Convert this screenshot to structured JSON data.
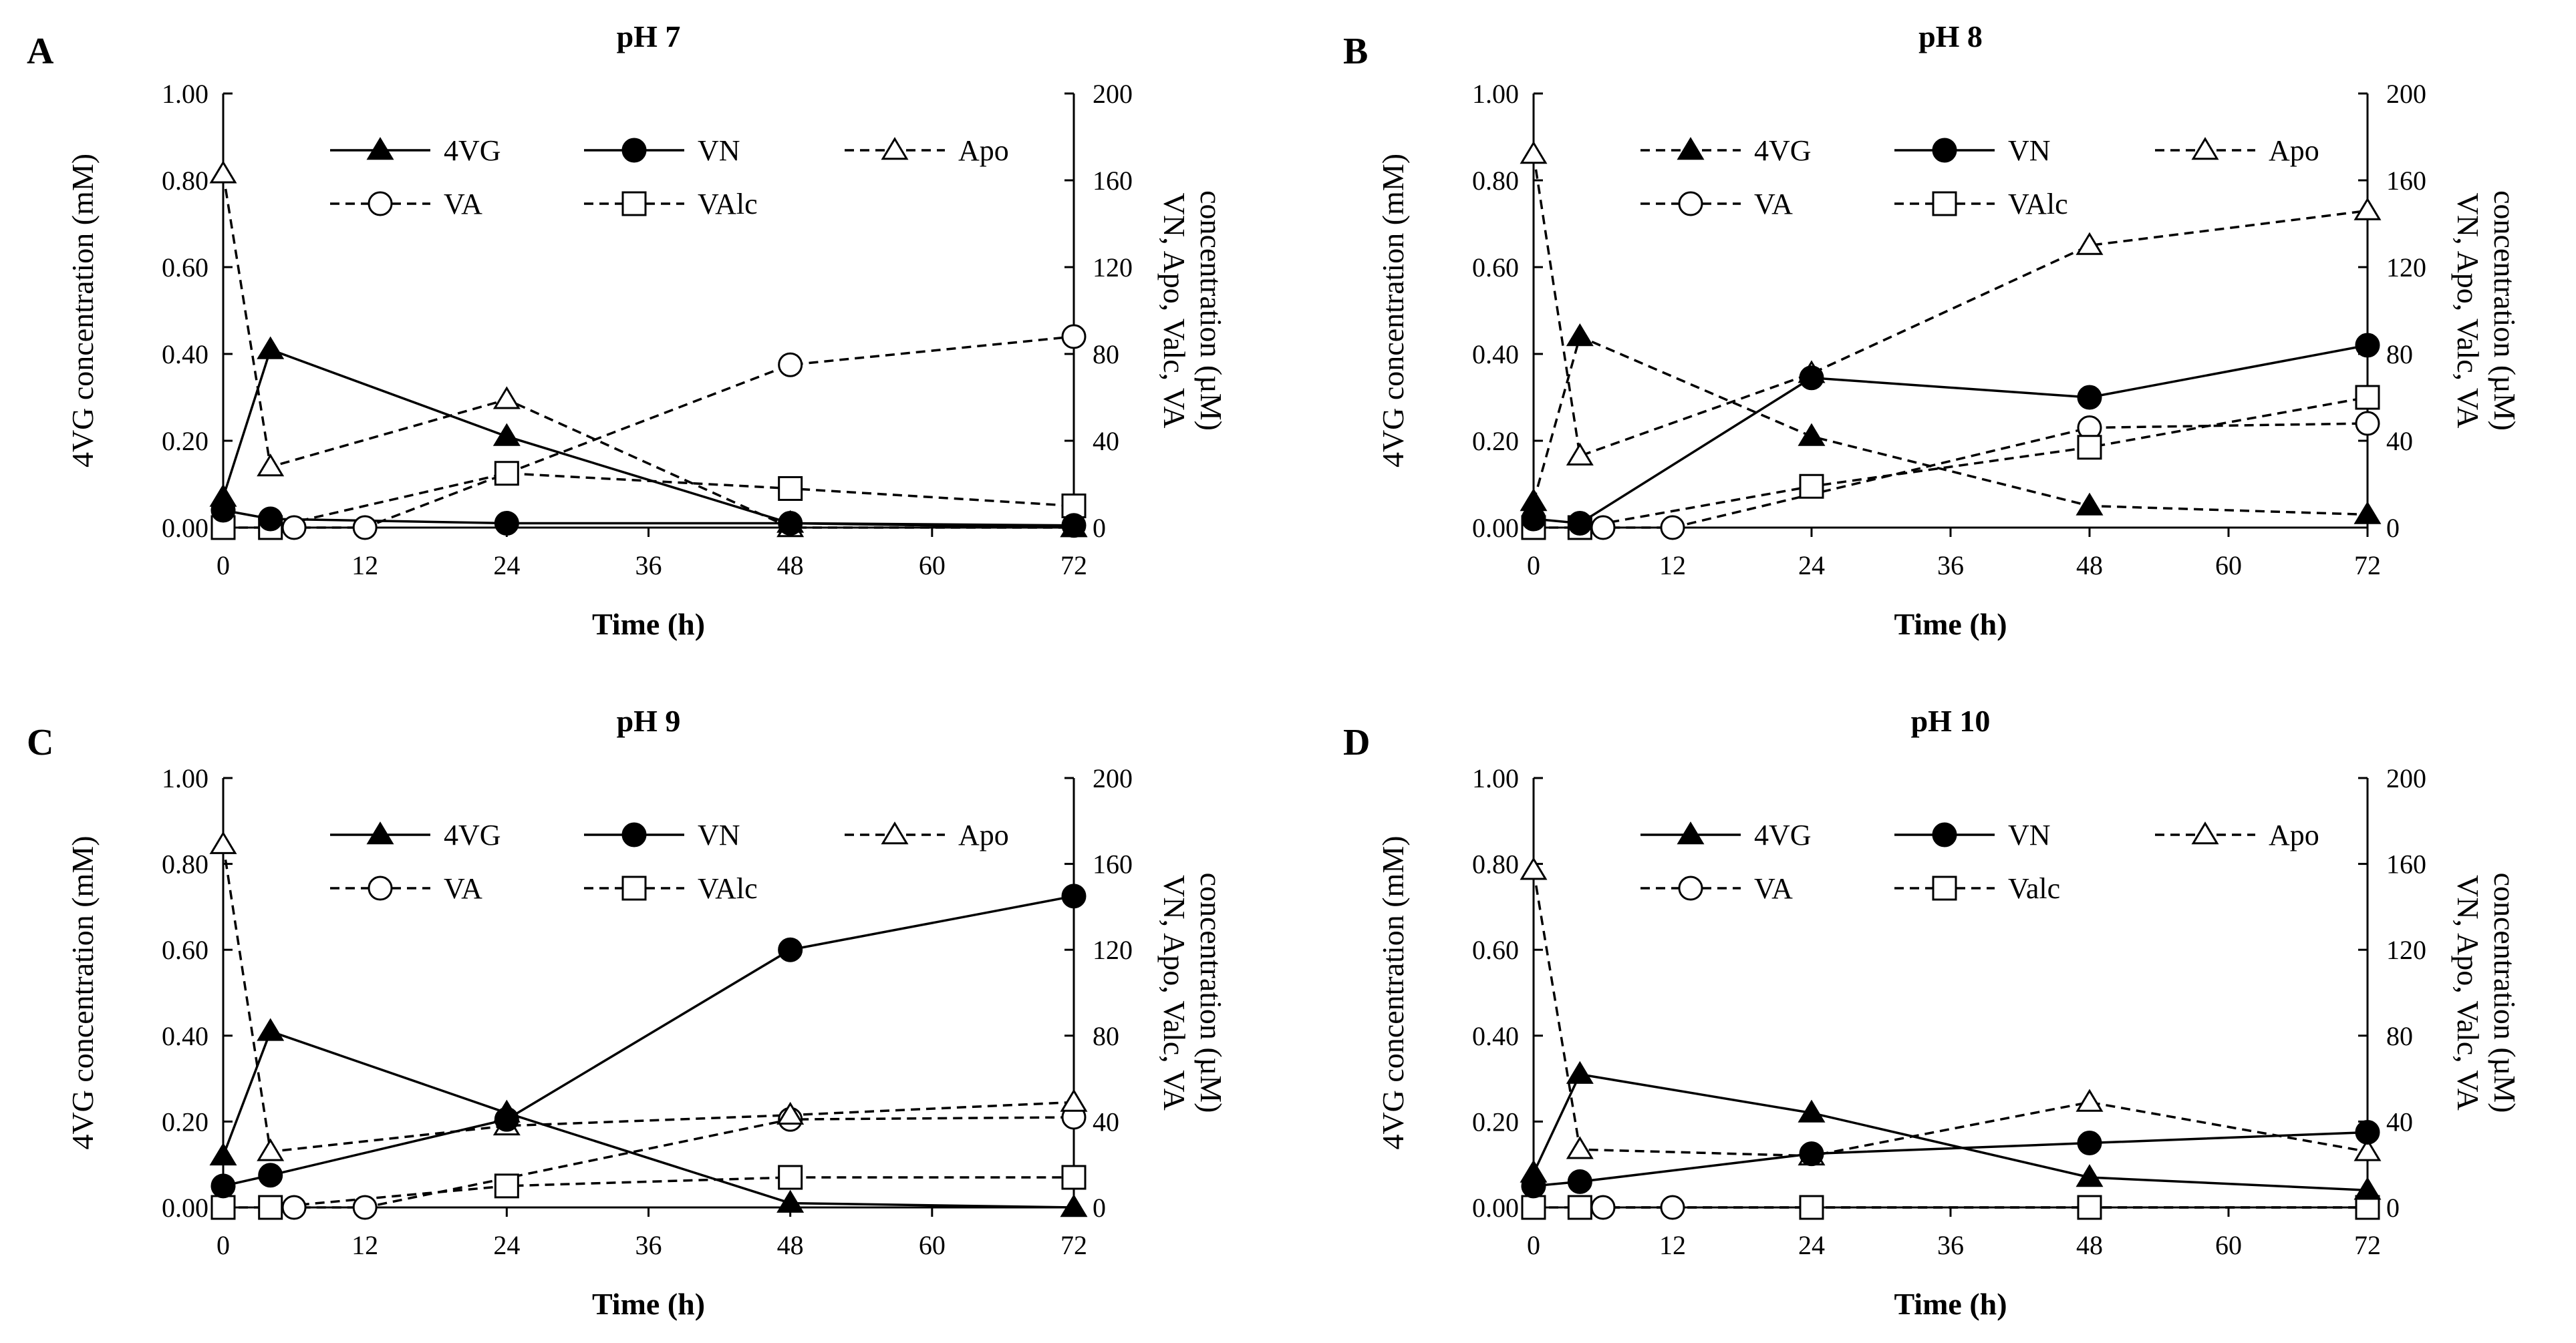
{
  "figure": {
    "x_axis_label": "Time (h)",
    "left_axis_label": "4VG concentration (mM)",
    "right_axis_label_line1": "VN, Apo, Valc, VA",
    "right_axis_label_line2": "concentration (µM)"
  },
  "chart_data": [
    {
      "type": "line",
      "panel": "A",
      "title": "pH 7",
      "xlabel": "Time (h)",
      "ylabel": "4VG concentration (mM)",
      "y2label": "VN, Apo, Valc, VA concentration (µM)",
      "xlim": [
        0,
        72
      ],
      "ylim": [
        0,
        1.0
      ],
      "y2lim": [
        0,
        200
      ],
      "x_ticks": [
        "0",
        "12",
        "24",
        "36",
        "48",
        "60",
        "72"
      ],
      "y_ticks": [
        "0.00",
        "0.20",
        "0.40",
        "0.60",
        "0.80",
        "1.00"
      ],
      "y2_ticks": [
        "0",
        "40",
        "80",
        "120",
        "160",
        "200"
      ],
      "legend_position": "top",
      "series": [
        {
          "name": "4VG",
          "axis": "left",
          "marker": "filled-triangle",
          "line": "solid",
          "x": [
            0,
            4,
            24,
            48,
            72
          ],
          "values": [
            0.07,
            0.41,
            0.21,
            0.01,
            0.0
          ]
        },
        {
          "name": "VN",
          "axis": "right",
          "marker": "filled-circle",
          "line": "solid",
          "x": [
            0,
            4,
            24,
            48,
            72
          ],
          "values": [
            8,
            4,
            2,
            2,
            1
          ]
        },
        {
          "name": "Apo",
          "axis": "right",
          "marker": "open-triangle",
          "line": "dashed",
          "x": [
            0,
            4,
            24,
            48,
            72
          ],
          "values": [
            163,
            28,
            59,
            0,
            0
          ]
        },
        {
          "name": "VA",
          "axis": "right",
          "marker": "open-circle",
          "line": "dashed",
          "x": [
            4,
            6,
            12,
            48,
            72
          ],
          "values": [
            0,
            0,
            0,
            75,
            88
          ]
        },
        {
          "name": "VAlc",
          "axis": "right",
          "marker": "open-square",
          "line": "dashed",
          "x": [
            0,
            4,
            24,
            48,
            72
          ],
          "values": [
            0,
            0,
            25,
            18,
            10
          ]
        }
      ]
    },
    {
      "type": "line",
      "panel": "B",
      "title": "pH 8",
      "xlabel": "Time (h)",
      "ylabel": "4VG concentration (mM)",
      "y2label": "VN, Apo, Valc, VA concentration (µM)",
      "xlim": [
        0,
        72
      ],
      "ylim": [
        0,
        1.0
      ],
      "y2lim": [
        0,
        200
      ],
      "x_ticks": [
        "0",
        "12",
        "24",
        "36",
        "48",
        "60",
        "72"
      ],
      "y_ticks": [
        "0.00",
        "0.20",
        "0.40",
        "0.60",
        "0.80",
        "1.00"
      ],
      "y2_ticks": [
        "0",
        "40",
        "80",
        "120",
        "160",
        "200"
      ],
      "legend_position": "top",
      "series": [
        {
          "name": "4VG",
          "axis": "left",
          "marker": "filled-triangle",
          "line": "dashed",
          "x": [
            0,
            4,
            24,
            48,
            72
          ],
          "values": [
            0.06,
            0.44,
            0.21,
            0.05,
            0.03
          ]
        },
        {
          "name": "VN",
          "axis": "right",
          "marker": "filled-circle",
          "line": "solid",
          "x": [
            0,
            4,
            24,
            48,
            72
          ],
          "values": [
            4,
            2,
            69,
            60,
            84
          ]
        },
        {
          "name": "Apo",
          "axis": "right",
          "marker": "open-triangle",
          "line": "dashed",
          "x": [
            0,
            4,
            24,
            48,
            72
          ],
          "values": [
            172,
            33,
            71,
            130,
            146
          ]
        },
        {
          "name": "VA",
          "axis": "right",
          "marker": "open-circle",
          "line": "dashed",
          "x": [
            4,
            6,
            12,
            48,
            72
          ],
          "values": [
            0,
            0,
            0,
            46,
            48
          ]
        },
        {
          "name": "VAlc",
          "axis": "right",
          "marker": "open-square",
          "line": "dashed",
          "x": [
            0,
            4,
            24,
            48,
            72
          ],
          "values": [
            0,
            0,
            19,
            37,
            60
          ]
        }
      ]
    },
    {
      "type": "line",
      "panel": "C",
      "title": "pH 9",
      "xlabel": "Time (h)",
      "ylabel": "4VG concentration (mM)",
      "y2label": "VN, Apo, Valc, VA concentration (µM)",
      "xlim": [
        0,
        72
      ],
      "ylim": [
        0,
        1.0
      ],
      "y2lim": [
        0,
        200
      ],
      "x_ticks": [
        "0",
        "12",
        "24",
        "36",
        "48",
        "60",
        "72"
      ],
      "y_ticks": [
        "0.00",
        "0.20",
        "0.40",
        "0.60",
        "0.80",
        "1.00"
      ],
      "y2_ticks": [
        "0",
        "40",
        "80",
        "120",
        "160",
        "200"
      ],
      "legend_position": "top",
      "series": [
        {
          "name": "4VG",
          "axis": "left",
          "marker": "filled-triangle",
          "line": "solid",
          "x": [
            0,
            4,
            24,
            48,
            72
          ],
          "values": [
            0.12,
            0.41,
            0.22,
            0.01,
            0.0
          ]
        },
        {
          "name": "VN",
          "axis": "right",
          "marker": "filled-circle",
          "line": "solid",
          "x": [
            0,
            4,
            24,
            48,
            72
          ],
          "values": [
            10,
            15,
            41,
            120,
            145
          ]
        },
        {
          "name": "Apo",
          "axis": "right",
          "marker": "open-triangle",
          "line": "dashed",
          "x": [
            0,
            4,
            24,
            48,
            72
          ],
          "values": [
            169,
            26,
            38,
            43,
            49
          ]
        },
        {
          "name": "VA",
          "axis": "right",
          "marker": "open-circle",
          "line": "dashed",
          "x": [
            4,
            6,
            12,
            48,
            72
          ],
          "values": [
            0,
            0,
            0,
            41,
            42
          ]
        },
        {
          "name": "VAlc",
          "axis": "right",
          "marker": "open-square",
          "line": "dashed",
          "x": [
            0,
            4,
            24,
            48,
            72
          ],
          "values": [
            0,
            0,
            10,
            14,
            14
          ]
        }
      ]
    },
    {
      "type": "line",
      "panel": "D",
      "title": "pH 10",
      "xlabel": "Time (h)",
      "ylabel": "4VG concentration (mM)",
      "y2label": "VN, Apo, Valc, VA concentration (µM)",
      "xlim": [
        0,
        72
      ],
      "ylim": [
        0,
        1.0
      ],
      "y2lim": [
        0,
        200
      ],
      "x_ticks": [
        "0",
        "12",
        "24",
        "36",
        "48",
        "60",
        "72"
      ],
      "y_ticks": [
        "0.00",
        "0.20",
        "0.40",
        "0.60",
        "0.80",
        "1.00"
      ],
      "y2_ticks": [
        "0",
        "40",
        "80",
        "120",
        "160",
        "200"
      ],
      "legend_position": "top",
      "series": [
        {
          "name": "4VG",
          "axis": "left",
          "marker": "filled-triangle",
          "line": "solid",
          "x": [
            0,
            4,
            24,
            48,
            72
          ],
          "values": [
            0.08,
            0.31,
            0.22,
            0.07,
            0.04
          ]
        },
        {
          "name": "VN",
          "axis": "right",
          "marker": "filled-circle",
          "line": "solid",
          "x": [
            0,
            4,
            24,
            48,
            72
          ],
          "values": [
            10,
            12,
            25,
            30,
            35
          ]
        },
        {
          "name": "Apo",
          "axis": "right",
          "marker": "open-triangle",
          "line": "dashed",
          "x": [
            0,
            4,
            24,
            48,
            72
          ],
          "values": [
            157,
            27,
            24,
            49,
            26
          ]
        },
        {
          "name": "VA",
          "axis": "right",
          "marker": "open-circle",
          "line": "dashed",
          "x": [
            4,
            6,
            12,
            48,
            72
          ],
          "values": [
            0,
            0,
            0,
            0,
            0
          ]
        },
        {
          "name": "Valc",
          "axis": "right",
          "marker": "open-square",
          "line": "dashed",
          "x": [
            0,
            4,
            24,
            48,
            72
          ],
          "values": [
            0,
            0,
            0,
            0,
            0
          ]
        }
      ]
    }
  ]
}
